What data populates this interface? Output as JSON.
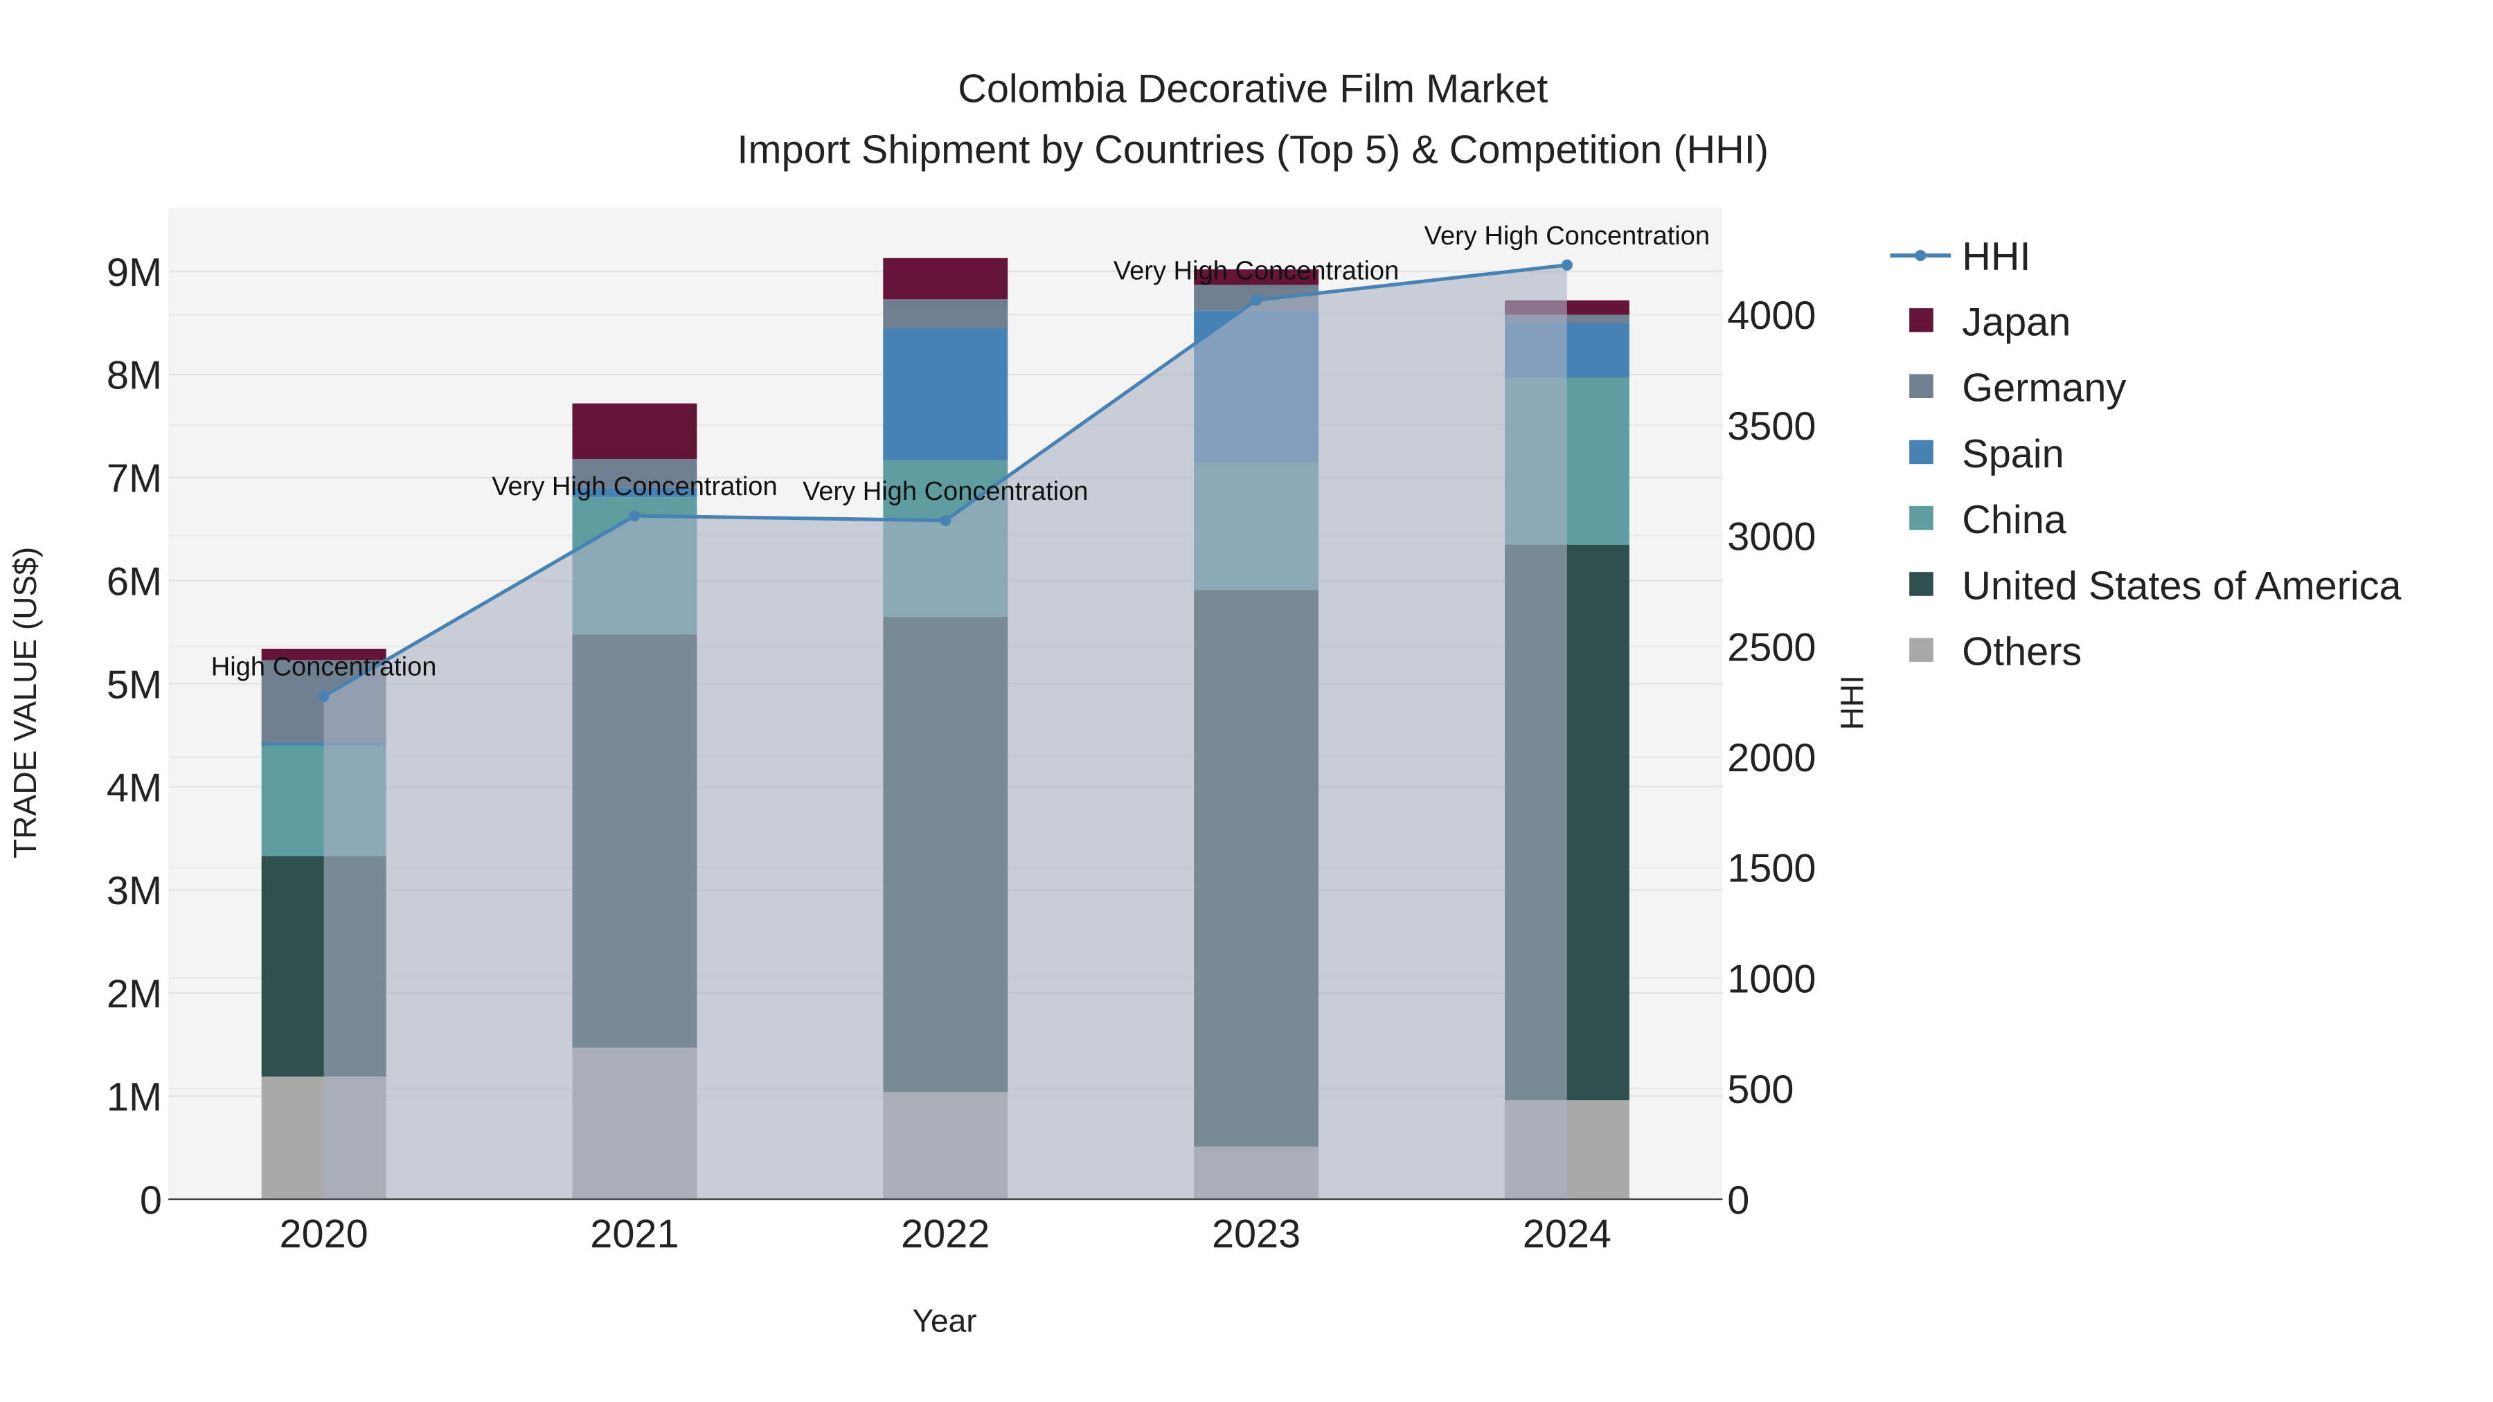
{
  "chart_data": {
    "type": "bar",
    "title": "Colombia Decorative Film Market",
    "subtitle": "Import Shipment by Countries (Top 5) & Competition (HHI)",
    "xlabel": "Year",
    "ylabel": "TRADE VALUE (US$)",
    "y2label": "HHI",
    "categories": [
      "2020",
      "2021",
      "2022",
      "2023",
      "2024"
    ],
    "ylim": [
      0,
      9600000
    ],
    "y2lim": [
      0,
      4480
    ],
    "yticks": [
      0,
      1000000,
      2000000,
      3000000,
      4000000,
      5000000,
      6000000,
      7000000,
      8000000,
      9000000
    ],
    "ytick_labels": [
      "0",
      "1M",
      "2M",
      "3M",
      "4M",
      "5M",
      "6M",
      "7M",
      "8M",
      "9M"
    ],
    "y2ticks": [
      0,
      500,
      1000,
      1500,
      2000,
      2500,
      3000,
      3500,
      4000
    ],
    "y2tick_labels": [
      "0",
      "500",
      "1000",
      "1500",
      "2000",
      "2500",
      "3000",
      "3500",
      "4000"
    ],
    "series": [
      {
        "name": "Others",
        "color": "#A9A9A9",
        "values": [
          1190000,
          1470000,
          1040000,
          510000,
          960000
        ]
      },
      {
        "name": "United States of America",
        "color": "#2F4F4F",
        "values": [
          2140000,
          4010000,
          4610000,
          5400000,
          5390000
        ]
      },
      {
        "name": "China",
        "color": "#5F9EA0",
        "values": [
          1070000,
          1330000,
          1520000,
          1240000,
          1620000
        ]
      },
      {
        "name": "Spain",
        "color": "#4682B4",
        "values": [
          30000,
          90000,
          1280000,
          1470000,
          530000
        ]
      },
      {
        "name": "Germany",
        "color": "#708090",
        "values": [
          800000,
          280000,
          280000,
          250000,
          80000
        ]
      },
      {
        "name": "Japan",
        "color": "#641436",
        "values": [
          110000,
          540000,
          400000,
          150000,
          140000
        ]
      }
    ],
    "line": {
      "name": "HHI",
      "color": "#4682B4",
      "values": [
        2274,
        3090,
        3069,
        4065,
        4224
      ],
      "annotations": [
        "High Concentration",
        "Very High Concentration",
        "Very High Concentration",
        "Very High Concentration",
        "Very High Concentration"
      ]
    },
    "legend_order": [
      "HHI",
      "Japan",
      "Germany",
      "Spain",
      "China",
      "United States of America",
      "Others"
    ],
    "legend_position": "right",
    "grid": true
  }
}
